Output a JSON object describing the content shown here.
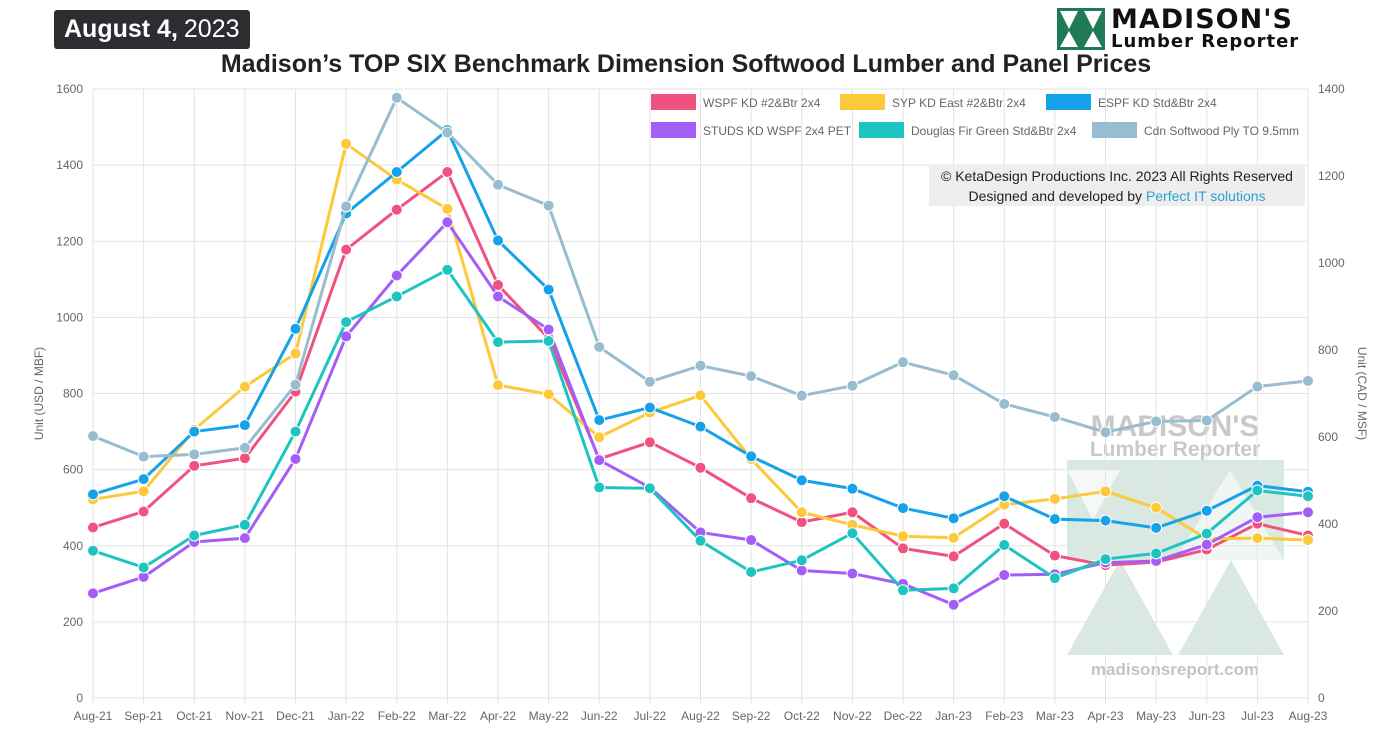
{
  "header": {
    "date_bold": "August 4,",
    "date_year": "2023",
    "logo_brand": "MADISON'S",
    "logo_sub": "Lumber Reporter"
  },
  "copyright": {
    "line1": "© KetaDesign Productions Inc. 2023 All Rights Reserved",
    "line2_prefix": "Designed and developed by ",
    "line2_link": "Perfect IT solutions"
  },
  "watermark": {
    "brand": "MADISON'S",
    "sub": "Lumber Reporter",
    "url": "madisonsreport.com"
  },
  "chart_data": {
    "type": "line",
    "title": "Madison’s TOP SIX Benchmark Dimension Softwood Lumber and Panel Prices",
    "ylabel": "Unit (USD / MBF)",
    "y2label": "Unit (CAD / MSF)",
    "ylim": [
      0,
      1600
    ],
    "y2lim": [
      0,
      1400
    ],
    "yticks": [
      0,
      200,
      400,
      600,
      800,
      1000,
      1200,
      1400,
      1600
    ],
    "y2ticks": [
      0,
      200,
      400,
      600,
      800,
      1000,
      1200,
      1400
    ],
    "grid": true,
    "legend_position": "top-right",
    "categories": [
      "Aug-21",
      "Sep-21",
      "Oct-21",
      "Nov-21",
      "Dec-21",
      "Jan-22",
      "Feb-22",
      "Mar-22",
      "Apr-22",
      "May-22",
      "Jun-22",
      "Jul-22",
      "Aug-22",
      "Sep-22",
      "Oct-22",
      "Nov-22",
      "Dec-22",
      "Jan-23",
      "Feb-23",
      "Mar-23",
      "Apr-23",
      "May-23",
      "Jun-23",
      "Jul-23",
      "Aug-23"
    ],
    "series": [
      {
        "name": "WSPF KD #2&Btr 2x4",
        "color": "#f0527f",
        "axis": "left",
        "values": [
          448,
          490,
          610,
          630,
          805,
          1178,
          1283,
          1382,
          1085,
          945,
          628,
          672,
          605,
          525,
          462,
          488,
          393,
          372,
          458,
          374,
          349,
          357,
          390,
          458,
          427
        ]
      },
      {
        "name": "SYP KD East #2&Btr 2x4",
        "color": "#fcc93a",
        "axis": "left",
        "values": [
          522,
          543,
          705,
          818,
          905,
          1456,
          1362,
          1285,
          822,
          798,
          685,
          750,
          795,
          628,
          488,
          455,
          425,
          421,
          508,
          523,
          543,
          500,
          418,
          420,
          415
        ]
      },
      {
        "name": "ESPF KD Std&Btr 2x4",
        "color": "#16a2e8",
        "axis": "left",
        "values": [
          535,
          575,
          700,
          717,
          970,
          1273,
          1382,
          1492,
          1202,
          1073,
          730,
          763,
          713,
          635,
          572,
          550,
          499,
          472,
          530,
          470,
          466,
          447,
          492,
          558,
          542
        ]
      },
      {
        "name": "STUDS KD WSPF 2x4 PET",
        "color": "#a45ef7",
        "axis": "left",
        "values": [
          275,
          318,
          410,
          420,
          628,
          950,
          1110,
          1250,
          1055,
          968,
          625,
          553,
          435,
          415,
          335,
          327,
          300,
          245,
          323,
          325,
          356,
          360,
          403,
          475,
          488
        ]
      },
      {
        "name": "Douglas Fir Green Std&Btr 2x4",
        "color": "#1ec4c0",
        "axis": "left",
        "values": [
          387,
          343,
          427,
          455,
          700,
          988,
          1055,
          1125,
          935,
          938,
          553,
          551,
          413,
          331,
          362,
          433,
          283,
          288,
          402,
          315,
          365,
          380,
          432,
          545,
          530
        ]
      },
      {
        "name": "Cdn Softwood Ply TO 9.5mm",
        "color": "#98bcd0",
        "axis": "right",
        "values": [
          602,
          555,
          560,
          575,
          720,
          1130,
          1380,
          1300,
          1180,
          1132,
          807,
          727,
          764,
          740,
          695,
          718,
          772,
          742,
          676,
          646,
          611,
          636,
          638,
          716,
          729
        ]
      }
    ]
  }
}
